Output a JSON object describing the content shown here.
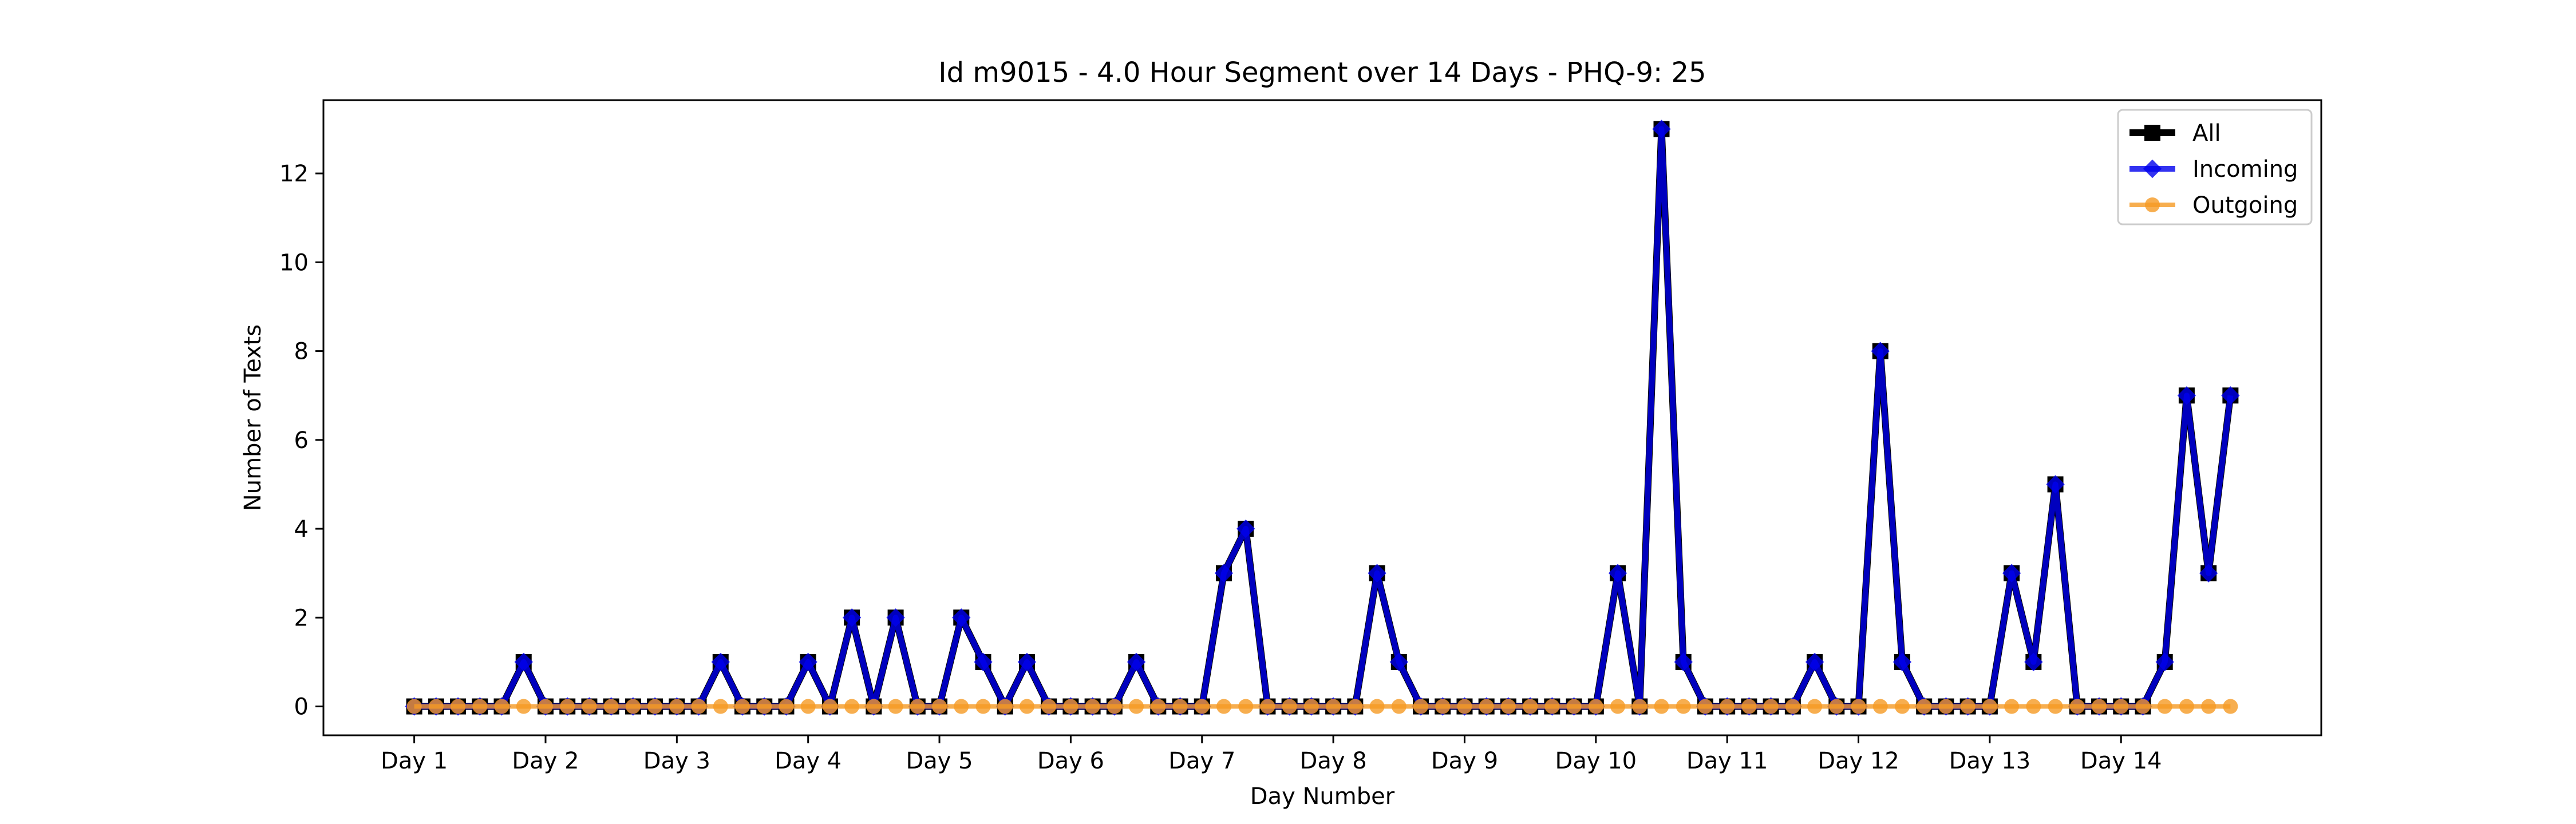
{
  "chart_data": {
    "type": "line",
    "title": "Id m9015 - 4.0 Hour Segment over 14 Days - PHQ-9: 25",
    "xlabel": "Day Number",
    "ylabel": "Number of Texts",
    "xlim": [
      -4.15,
      87.15
    ],
    "ylim": [
      -0.65,
      13.65
    ],
    "yticks": [
      0,
      2,
      4,
      6,
      8,
      10,
      12
    ],
    "xticks": [
      {
        "x": 0,
        "label": "Day 1"
      },
      {
        "x": 6,
        "label": "Day 2"
      },
      {
        "x": 12,
        "label": "Day 3"
      },
      {
        "x": 18,
        "label": "Day 4"
      },
      {
        "x": 24,
        "label": "Day 5"
      },
      {
        "x": 30,
        "label": "Day 6"
      },
      {
        "x": 36,
        "label": "Day 7"
      },
      {
        "x": 42,
        "label": "Day 8"
      },
      {
        "x": 48,
        "label": "Day 9"
      },
      {
        "x": 54,
        "label": "Day 10"
      },
      {
        "x": 60,
        "label": "Day 11"
      },
      {
        "x": 66,
        "label": "Day 12"
      },
      {
        "x": 72,
        "label": "Day 13"
      },
      {
        "x": 78,
        "label": "Day 14"
      }
    ],
    "grid": false,
    "legend_position": "top-right",
    "series": [
      {
        "name": "All",
        "color": "#000000",
        "marker": "square",
        "values": [
          0,
          0,
          0,
          0,
          0,
          1,
          0,
          0,
          0,
          0,
          0,
          0,
          0,
          0,
          1,
          0,
          0,
          0,
          1,
          0,
          2,
          0,
          2,
          0,
          0,
          2,
          1,
          0,
          1,
          0,
          0,
          0,
          0,
          1,
          0,
          0,
          0,
          3,
          4,
          0,
          0,
          0,
          0,
          0,
          3,
          1,
          0,
          0,
          0,
          0,
          0,
          0,
          0,
          0,
          0,
          3,
          0,
          13,
          1,
          0,
          0,
          0,
          0,
          0,
          1,
          0,
          0,
          8,
          1,
          0,
          0,
          0,
          0,
          3,
          1,
          5,
          0,
          0,
          0,
          0,
          1,
          7,
          3,
          7
        ]
      },
      {
        "name": "Incoming",
        "color": "#0000ee",
        "marker": "diamond",
        "values": [
          0,
          0,
          0,
          0,
          0,
          1,
          0,
          0,
          0,
          0,
          0,
          0,
          0,
          0,
          1,
          0,
          0,
          0,
          1,
          0,
          2,
          0,
          2,
          0,
          0,
          2,
          1,
          0,
          1,
          0,
          0,
          0,
          0,
          1,
          0,
          0,
          0,
          3,
          4,
          0,
          0,
          0,
          0,
          0,
          3,
          1,
          0,
          0,
          0,
          0,
          0,
          0,
          0,
          0,
          0,
          3,
          0,
          13,
          1,
          0,
          0,
          0,
          0,
          0,
          1,
          0,
          0,
          8,
          1,
          0,
          0,
          0,
          0,
          3,
          1,
          5,
          0,
          0,
          0,
          0,
          1,
          7,
          3,
          7
        ]
      },
      {
        "name": "Outgoing",
        "color": "#f59a23",
        "marker": "circle",
        "values": [
          0,
          0,
          0,
          0,
          0,
          0,
          0,
          0,
          0,
          0,
          0,
          0,
          0,
          0,
          0,
          0,
          0,
          0,
          0,
          0,
          0,
          0,
          0,
          0,
          0,
          0,
          0,
          0,
          0,
          0,
          0,
          0,
          0,
          0,
          0,
          0,
          0,
          0,
          0,
          0,
          0,
          0,
          0,
          0,
          0,
          0,
          0,
          0,
          0,
          0,
          0,
          0,
          0,
          0,
          0,
          0,
          0,
          0,
          0,
          0,
          0,
          0,
          0,
          0,
          0,
          0,
          0,
          0,
          0,
          0,
          0,
          0,
          0,
          0,
          0,
          0,
          0,
          0,
          0,
          0,
          0,
          0,
          0,
          0
        ]
      }
    ]
  }
}
